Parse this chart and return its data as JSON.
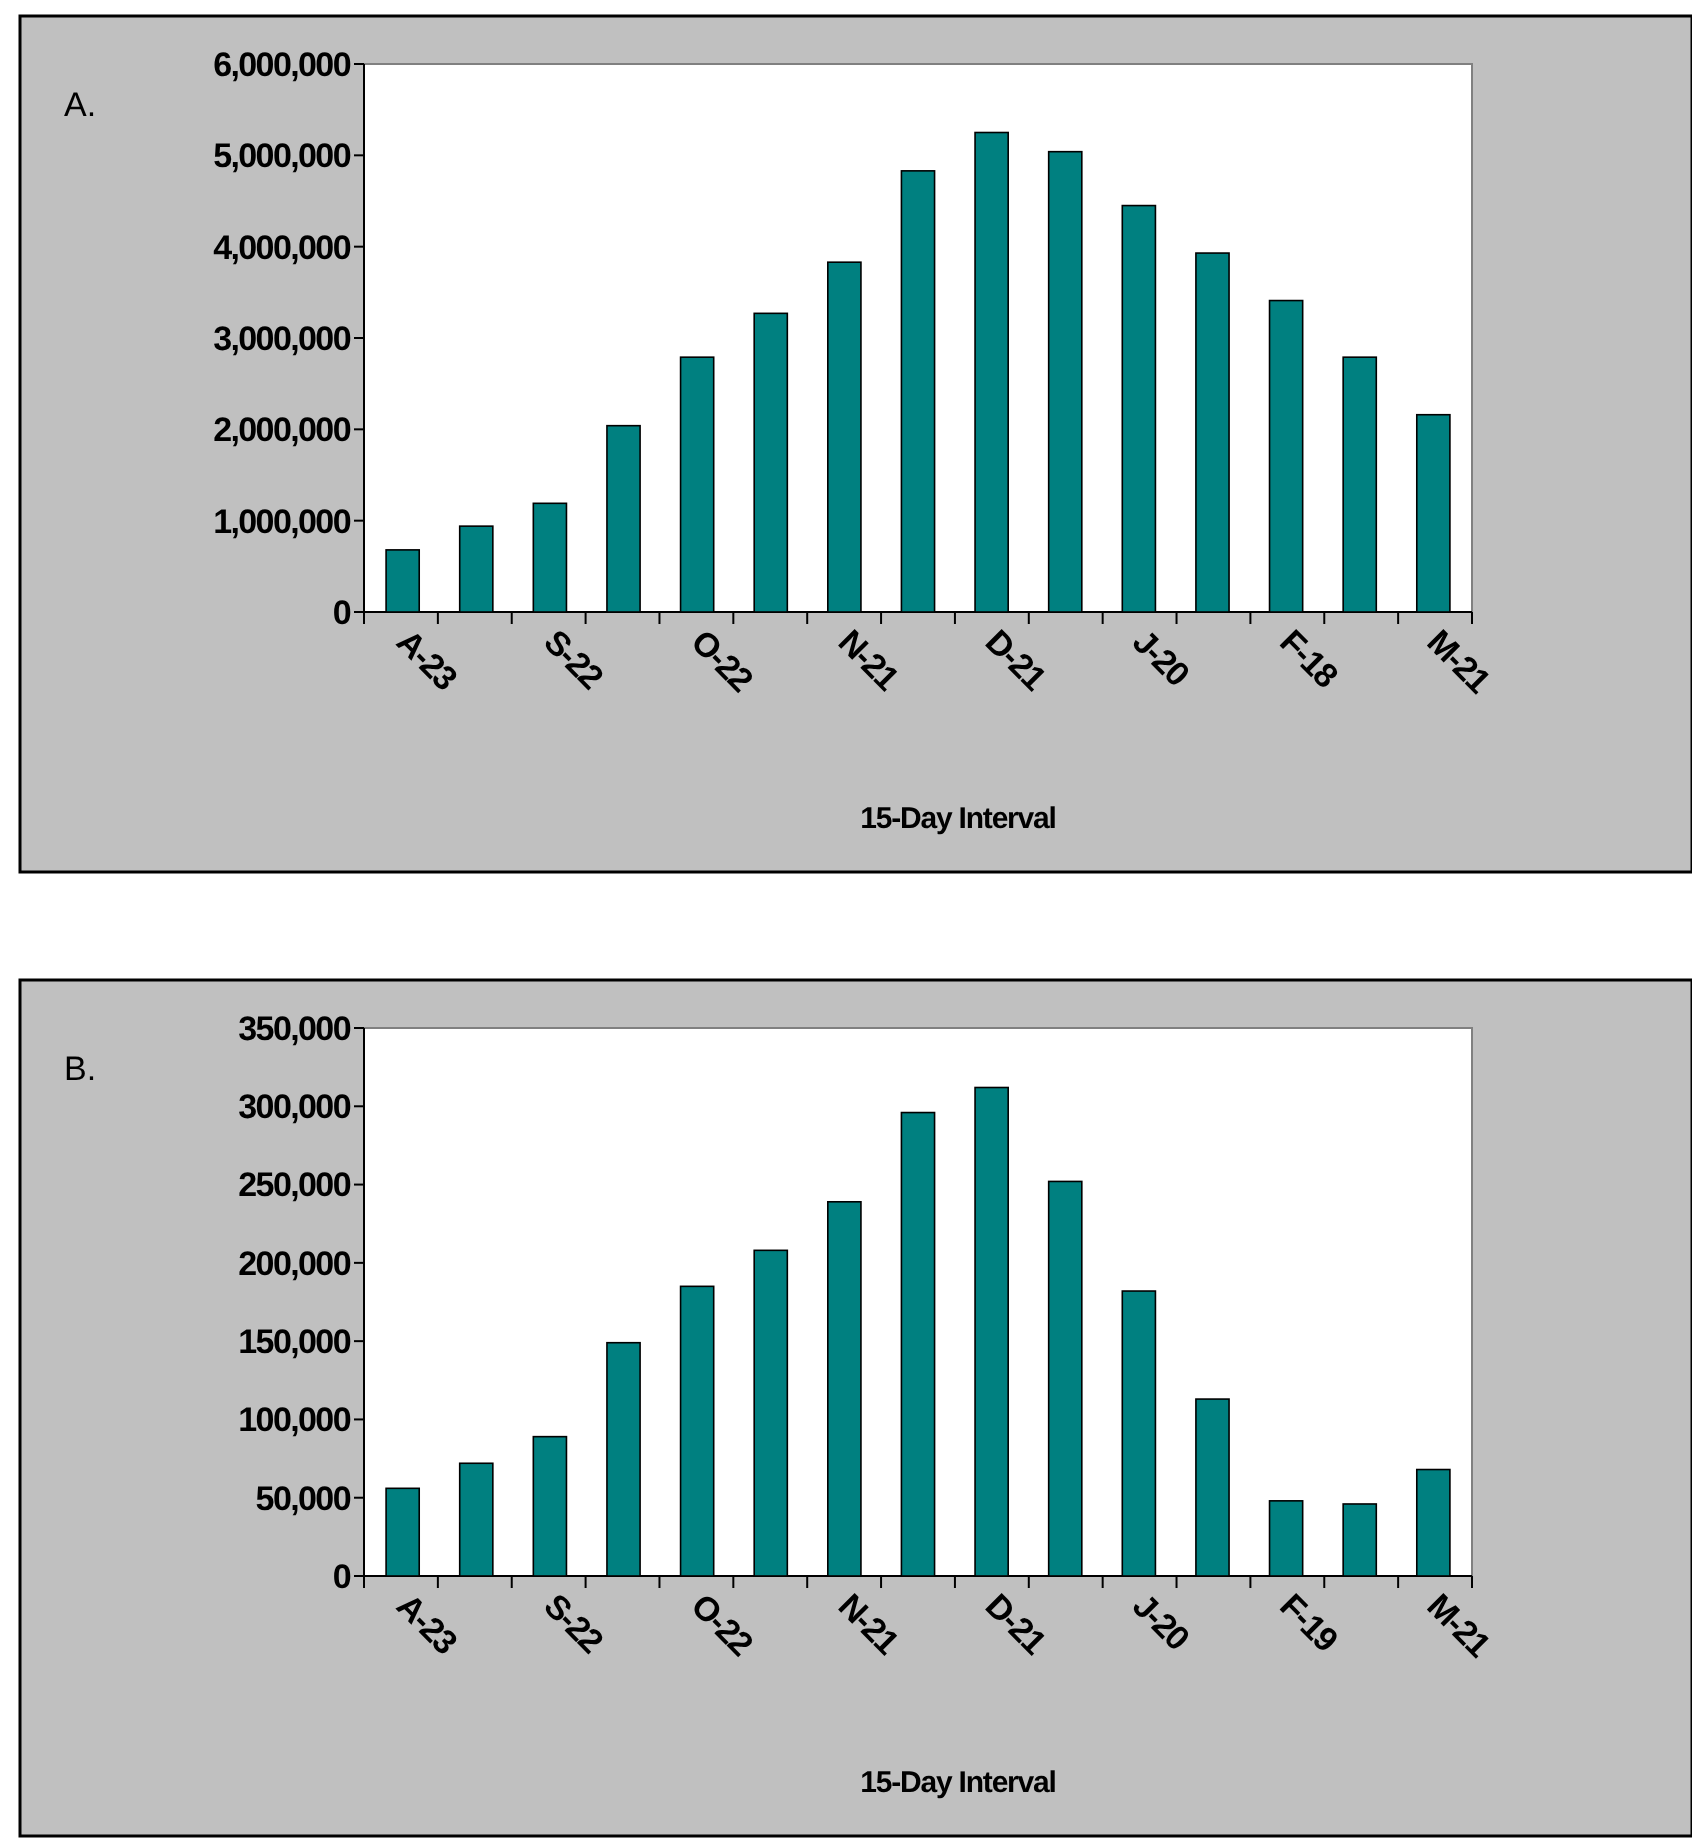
{
  "chart_data": [
    {
      "type": "bar",
      "title": "A.",
      "xlabel": "15-Day Interval",
      "categories": [
        "A-23",
        null,
        "S-22",
        null,
        "O-22",
        null,
        "N-21",
        null,
        "D-21",
        null,
        "J-20",
        null,
        "F-18",
        null,
        "M-21"
      ],
      "values": [
        680000,
        940000,
        1190000,
        2040000,
        2790000,
        3270000,
        3830000,
        4830000,
        5250000,
        5040000,
        4450000,
        3930000,
        3410000,
        2790000,
        2160000
      ],
      "color": "#008080",
      "ylim": [
        0,
        6000000
      ],
      "yticks": [
        {
          "value": 0,
          "label": "0"
        },
        {
          "value": 1000000,
          "label": "1,000,000"
        },
        {
          "value": 2000000,
          "label": "2,000,000"
        },
        {
          "value": 3000000,
          "label": "3,000,000"
        },
        {
          "value": 4000000,
          "label": "4,000,000"
        },
        {
          "value": 5000000,
          "label": "5,000,000"
        },
        {
          "value": 6000000,
          "label": "6,000,000"
        }
      ]
    },
    {
      "type": "bar",
      "title": "B.",
      "xlabel": "15-Day Interval",
      "categories": [
        "A-23",
        null,
        "S-22",
        null,
        "O-22",
        null,
        "N-21",
        null,
        "D-21",
        null,
        "J-20",
        null,
        "F-19",
        null,
        "M-21"
      ],
      "values": [
        56000,
        72000,
        89000,
        149000,
        185000,
        208000,
        239000,
        296000,
        312000,
        252000,
        182000,
        113000,
        48000,
        46000,
        68000
      ],
      "color": "#008080",
      "ylim": [
        0,
        350000
      ],
      "yticks": [
        {
          "value": 0,
          "label": "0"
        },
        {
          "value": 50000,
          "label": "50,000"
        },
        {
          "value": 100000,
          "label": "100,000"
        },
        {
          "value": 150000,
          "label": "150,000"
        },
        {
          "value": 200000,
          "label": "200,000"
        },
        {
          "value": 250000,
          "label": "250,000"
        },
        {
          "value": 300000,
          "label": "300,000"
        },
        {
          "value": 350000,
          "label": "350,000"
        }
      ]
    }
  ]
}
